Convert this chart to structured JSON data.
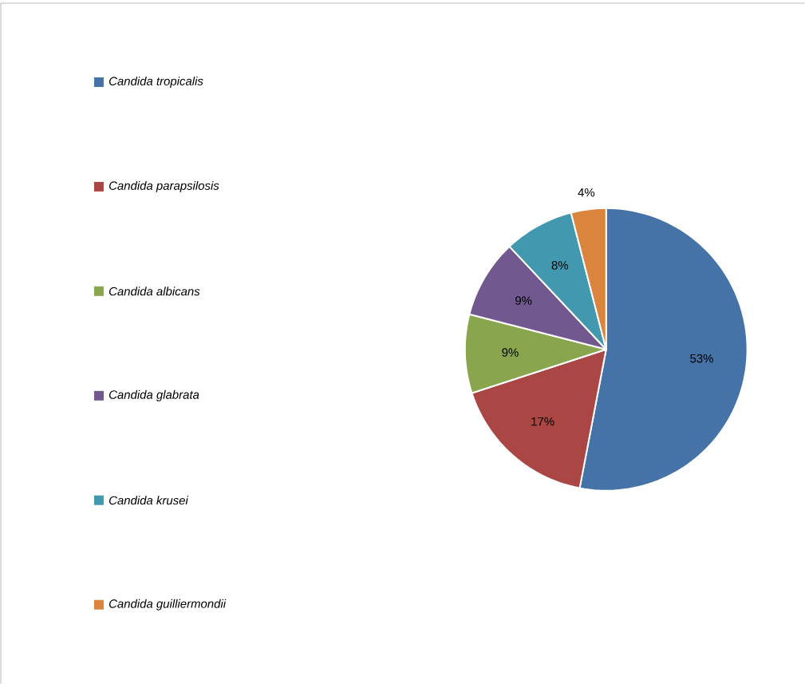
{
  "chart_data": {
    "type": "pie",
    "categories": [
      "*Candida tropicalis*",
      "*Candida parapsilosis*",
      "*Candida albicans*",
      "*Candida glabrata*",
      "*Candida krusei*",
      "*Candida guilliermondii*"
    ],
    "values": [
      53,
      17,
      9,
      9,
      8,
      4
    ],
    "value_labels": [
      "53%",
      "17%",
      "9%",
      "9%",
      "8%",
      "4%"
    ],
    "colors": [
      "#4572a7",
      "#aa4643",
      "#89a54e",
      "#71588f",
      "#4198af",
      "#db843d"
    ],
    "legend": "left"
  }
}
